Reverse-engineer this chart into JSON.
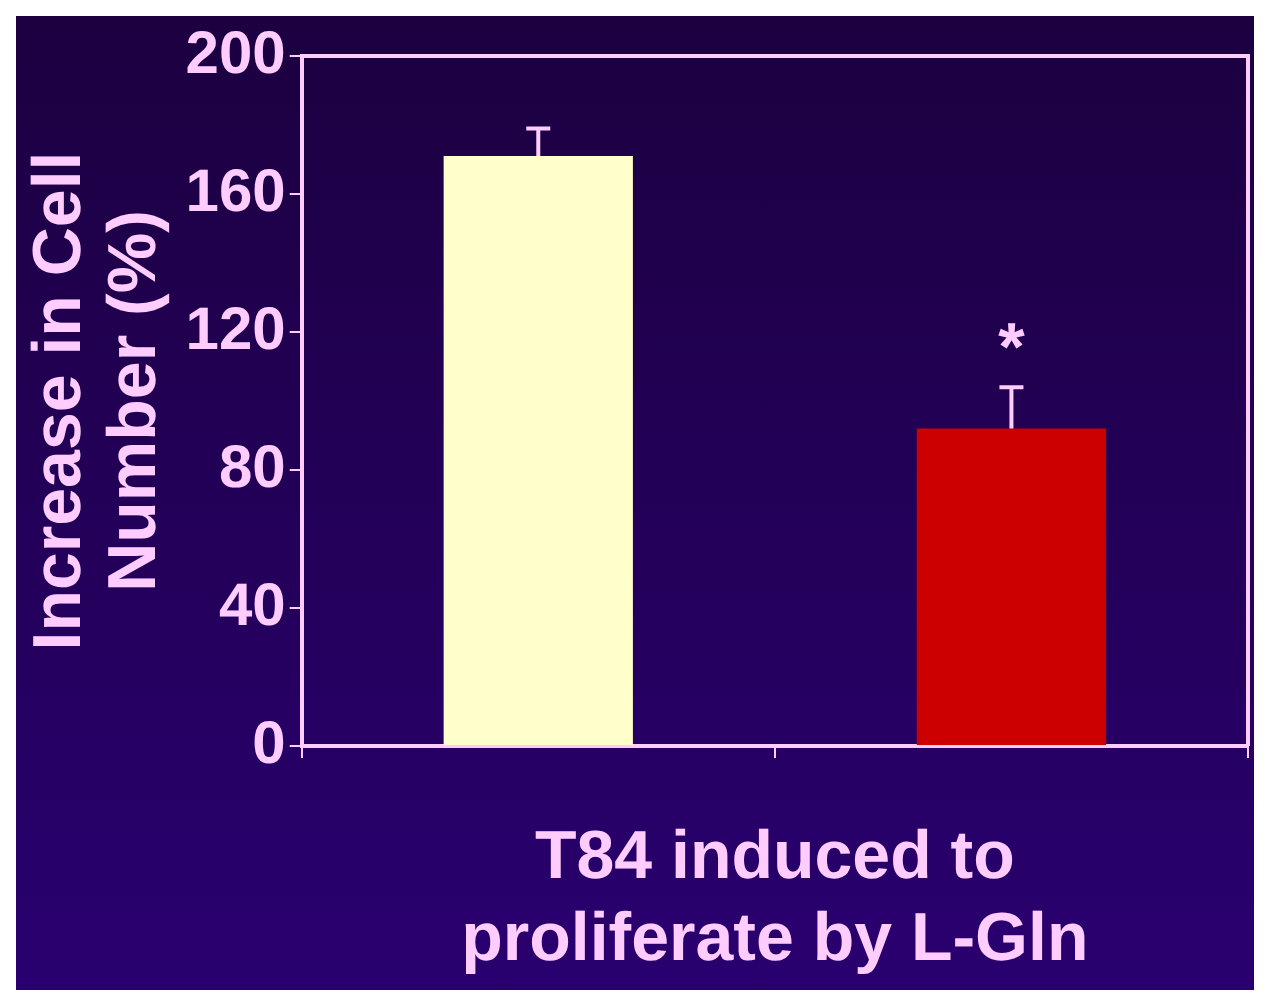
{
  "chart_data": {
    "type": "bar",
    "categories": [
      null,
      null
    ],
    "values": [
      171,
      92
    ],
    "colors": [
      "#ffffcc",
      "#cc0000"
    ],
    "errors": [
      8,
      12
    ],
    "ylim": [
      0,
      200
    ],
    "yticks": [
      0,
      40,
      80,
      120,
      160,
      200
    ],
    "grid": false,
    "legend": false,
    "xlabel": "T84 induced to proliferate by L-Gln",
    "ylabel": "Increase in Cell Number (%)",
    "annotations": [
      "*"
    ]
  }
}
